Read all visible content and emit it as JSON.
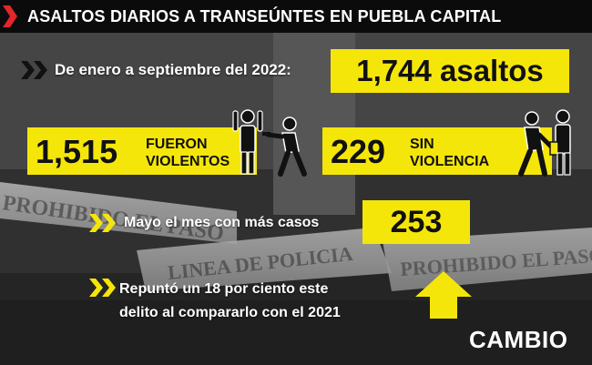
{
  "title": "ASALTOS DIARIOS A TRANSEÚNTES EN PUEBLA CAPITAL",
  "period_label": "De enero a septiembre del 2022:",
  "total": "1,744 asaltos",
  "violent": {
    "value": "1,515",
    "label_line1": "FUERON",
    "label_line2": "VIOLENTOS"
  },
  "nonviolent": {
    "value": "229",
    "label_line1": "SIN",
    "label_line2": "VIOLENCIA"
  },
  "peak_month": {
    "label": "Mayo el mes con más casos",
    "value": "253"
  },
  "increase": {
    "line1": "Repuntó un 18 por ciento este",
    "line2": "delito al compararlo con el 2021"
  },
  "tape_texts": [
    "PROHIBIDO EL PASO",
    "LINEA DE POLICIA",
    "PROHIBIDO EL PASO"
  ],
  "brand": "CAMBIO",
  "colors": {
    "accent_yellow": "#f5e60a",
    "title_red": "#e1262c",
    "dark": "#0b0b0b"
  },
  "icons": {
    "title": "red-chevron-icon",
    "bullets": "double-chevron-icon",
    "violent": "robbery-gunpoint-icon",
    "nonviolent": "theft-icon",
    "arrow": "up-arrow-icon"
  }
}
